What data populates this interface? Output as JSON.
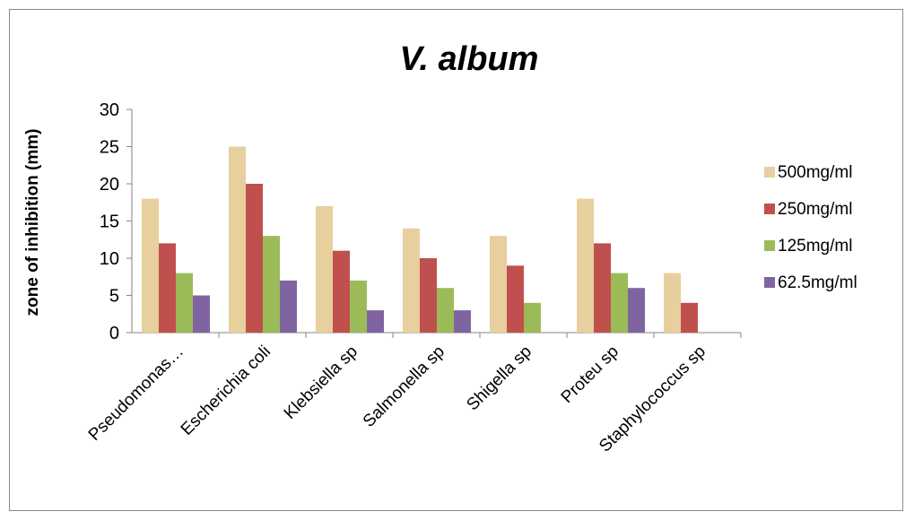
{
  "chart_data": {
    "type": "bar",
    "title": "V. album",
    "xlabel": "",
    "ylabel": "zone of inhibition (mm)",
    "ylim": [
      0,
      30
    ],
    "yticks": [
      0,
      5,
      10,
      15,
      20,
      25,
      30
    ],
    "grid": false,
    "legend_position": "right",
    "categories": [
      "Pseudomonas…",
      "Escherichia coli",
      "Klebsiella sp",
      "Salmonella sp",
      "Shigella sp",
      "Proteu sp",
      "Staphylococcus sp"
    ],
    "series": [
      {
        "name": "500mg/ml",
        "color": "#e8cf9e",
        "values": [
          18,
          25,
          17,
          14,
          13,
          18,
          8
        ]
      },
      {
        "name": "250mg/ml",
        "color": "#c0504d",
        "values": [
          12,
          20,
          11,
          10,
          9,
          12,
          4
        ]
      },
      {
        "name": "125mg/ml",
        "color": "#9bbb59",
        "values": [
          8,
          13,
          7,
          6,
          4,
          8,
          0
        ]
      },
      {
        "name": "62.5mg/ml",
        "color": "#8064a2",
        "values": [
          5,
          7,
          3,
          3,
          0,
          6,
          0
        ]
      }
    ]
  }
}
